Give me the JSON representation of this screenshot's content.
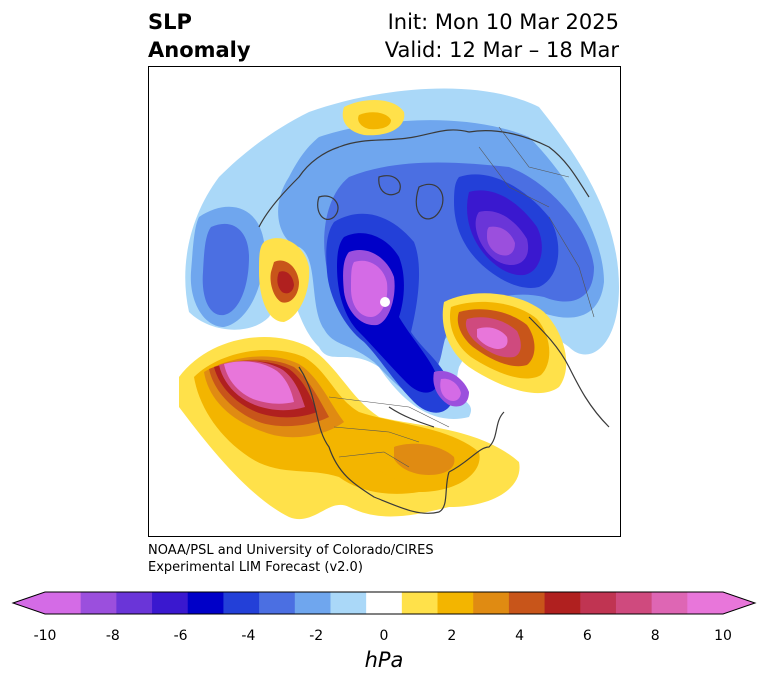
{
  "header": {
    "title_line1": "SLP",
    "title_line2": "Anomaly",
    "init": "Init: Mon 10 Mar 2025",
    "valid": "Valid: 12 Mar – 18 Mar"
  },
  "credit": {
    "line1": "NOAA/PSL and University of Colorado/CIRES",
    "line2": "Experimental LIM Forecast (v2.0)"
  },
  "colorbar": {
    "unit": "hPa",
    "ticks": [
      "-10",
      "-8",
      "-6",
      "-4",
      "-2",
      "0",
      "2",
      "4",
      "6",
      "8",
      "10"
    ],
    "colors": [
      "#d46be6",
      "#9b4fdd",
      "#6a35d8",
      "#3a18cf",
      "#0000c8",
      "#2340d8",
      "#4b6fe2",
      "#6fa6ee",
      "#aad8f8",
      "#ffffff",
      "#ffe14a",
      "#f3b500",
      "#e08b12",
      "#c8551a",
      "#b0201f",
      "#c03452",
      "#cf4a7e",
      "#de66b4",
      "#e876da"
    ],
    "extend_min_color": "#d46be6",
    "extend_max_color": "#e876da"
  },
  "map": {
    "projection": "north-polar-stereographic",
    "field": "SLP anomaly (hPa)",
    "features": [
      "High over northeast Pacific (>10 hPa)",
      "Low over western Arctic (<-10 hPa)",
      "Low over Siberia (~-8 hPa)",
      "High over Bering/Chukotka region (~+8 hPa)",
      "Low over Scandinavia/Barents (~-8 hPa)",
      "Positive anomaly over eastern US"
    ]
  }
}
